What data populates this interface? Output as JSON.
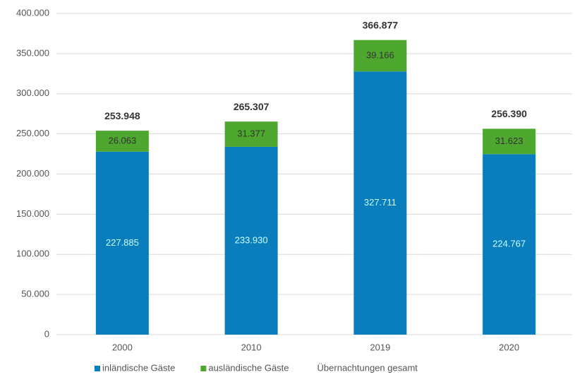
{
  "chart_data": {
    "type": "bar",
    "stacked": true,
    "categories": [
      "2000",
      "2010",
      "2019",
      "2020"
    ],
    "series": [
      {
        "name": "inländische Gäste",
        "color": "#0a7dbd",
        "label_color": "#c8ffff",
        "values": [
          227885,
          233930,
          327711,
          224767
        ],
        "value_labels": [
          "227.885",
          "233.930",
          "327.711",
          "224.767"
        ]
      },
      {
        "name": "ausländische Gäste",
        "color": "#4ea72e",
        "label_color": "#333333",
        "values": [
          26063,
          31377,
          39166,
          31623
        ],
        "value_labels": [
          "26.063",
          "31.377",
          "39.166",
          "31.623"
        ]
      }
    ],
    "totals": {
      "name": "Übernachtungen gesamt",
      "values": [
        253948,
        265307,
        366877,
        256390
      ],
      "value_labels": [
        "253.948",
        "265.307",
        "366.877",
        "256.390"
      ]
    },
    "ylim": [
      0,
      400000
    ],
    "yticks": [
      0,
      {
        "value": 50000,
        "label": "50.000"
      },
      {
        "value": 100000,
        "label": "100.000"
      },
      {
        "value": 150000,
        "label": "150.000"
      },
      {
        "value": 200000,
        "label": "200.000"
      },
      {
        "value": 250000,
        "label": "250.000"
      },
      {
        "value": 300000,
        "label": "300.000"
      },
      {
        "value": 350000,
        "label": "350.000"
      },
      {
        "value": 400000,
        "label": "400.000"
      }
    ],
    "grid": true,
    "legend": "bottom"
  }
}
